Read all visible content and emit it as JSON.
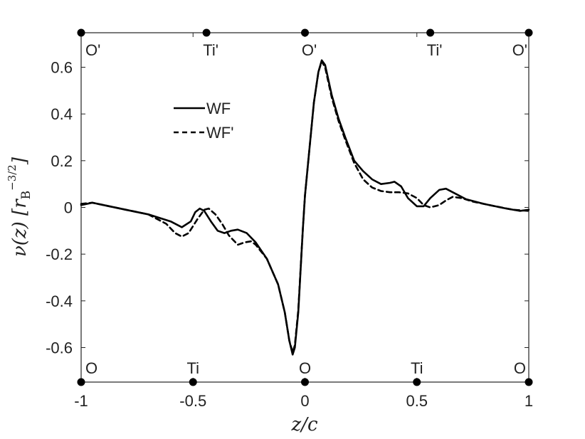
{
  "chart_data": {
    "type": "line",
    "xlabel": "z/c",
    "ylabel": "ν(z) [r_B^{-3/2}]",
    "xlim": [
      -1,
      1
    ],
    "ylim": [
      -0.75,
      0.75
    ],
    "x_ticks": [
      -1,
      -0.5,
      0,
      0.5,
      1
    ],
    "x_tick_labels": [
      "-1",
      "-0.5",
      "0",
      "0.5",
      "1"
    ],
    "y_ticks": [
      -0.6,
      -0.4,
      -0.2,
      0,
      0.2,
      0.4,
      0.6
    ],
    "y_tick_labels": [
      "-0.6",
      "-0.4",
      "-0.2",
      "0",
      "0.2",
      "0.4",
      "0.6"
    ],
    "grid": false,
    "legend_position": "upper-left",
    "series": [
      {
        "name": "WF",
        "style": "solid",
        "color": "#000000",
        "points": [
          [
            -1.0,
            0.01
          ],
          [
            -0.95,
            0.02
          ],
          [
            -0.9,
            0.01
          ],
          [
            -0.8,
            -0.01
          ],
          [
            -0.7,
            -0.03
          ],
          [
            -0.6,
            -0.06
          ],
          [
            -0.55,
            -0.085
          ],
          [
            -0.51,
            -0.06
          ],
          [
            -0.49,
            -0.02
          ],
          [
            -0.47,
            -0.005
          ],
          [
            -0.45,
            -0.015
          ],
          [
            -0.42,
            -0.06
          ],
          [
            -0.39,
            -0.1
          ],
          [
            -0.36,
            -0.11
          ],
          [
            -0.33,
            -0.1
          ],
          [
            -0.3,
            -0.095
          ],
          [
            -0.26,
            -0.11
          ],
          [
            -0.22,
            -0.15
          ],
          [
            -0.17,
            -0.22
          ],
          [
            -0.12,
            -0.33
          ],
          [
            -0.09,
            -0.45
          ],
          [
            -0.07,
            -0.57
          ],
          [
            -0.055,
            -0.63
          ],
          [
            -0.045,
            -0.6
          ],
          [
            -0.03,
            -0.45
          ],
          [
            -0.01,
            -0.1
          ],
          [
            0.0,
            0.05
          ],
          [
            0.02,
            0.25
          ],
          [
            0.04,
            0.45
          ],
          [
            0.06,
            0.58
          ],
          [
            0.075,
            0.63
          ],
          [
            0.09,
            0.61
          ],
          [
            0.12,
            0.48
          ],
          [
            0.15,
            0.38
          ],
          [
            0.18,
            0.3
          ],
          [
            0.22,
            0.2
          ],
          [
            0.26,
            0.155
          ],
          [
            0.3,
            0.12
          ],
          [
            0.34,
            0.1
          ],
          [
            0.38,
            0.105
          ],
          [
            0.4,
            0.11
          ],
          [
            0.43,
            0.09
          ],
          [
            0.46,
            0.04
          ],
          [
            0.5,
            0.005
          ],
          [
            0.53,
            0.005
          ],
          [
            0.56,
            0.04
          ],
          [
            0.6,
            0.075
          ],
          [
            0.63,
            0.08
          ],
          [
            0.66,
            0.065
          ],
          [
            0.72,
            0.035
          ],
          [
            0.8,
            0.015
          ],
          [
            0.9,
            -0.005
          ],
          [
            0.96,
            -0.015
          ],
          [
            1.0,
            -0.01
          ]
        ]
      },
      {
        "name": "WF'",
        "style": "dashed",
        "color": "#000000",
        "points": [
          [
            -1.0,
            0.015
          ],
          [
            -0.95,
            0.02
          ],
          [
            -0.9,
            0.01
          ],
          [
            -0.8,
            -0.01
          ],
          [
            -0.7,
            -0.03
          ],
          [
            -0.62,
            -0.07
          ],
          [
            -0.58,
            -0.11
          ],
          [
            -0.55,
            -0.125
          ],
          [
            -0.52,
            -0.11
          ],
          [
            -0.48,
            -0.05
          ],
          [
            -0.45,
            -0.01
          ],
          [
            -0.43,
            -0.005
          ],
          [
            -0.4,
            -0.03
          ],
          [
            -0.37,
            -0.07
          ],
          [
            -0.34,
            -0.12
          ],
          [
            -0.3,
            -0.16
          ],
          [
            -0.27,
            -0.15
          ],
          [
            -0.24,
            -0.145
          ],
          [
            -0.22,
            -0.16
          ],
          [
            -0.17,
            -0.22
          ],
          [
            -0.12,
            -0.33
          ],
          [
            -0.09,
            -0.45
          ],
          [
            -0.07,
            -0.57
          ],
          [
            -0.055,
            -0.62
          ],
          [
            -0.045,
            -0.59
          ],
          [
            -0.03,
            -0.44
          ],
          [
            -0.01,
            -0.1
          ],
          [
            0.0,
            0.05
          ],
          [
            0.02,
            0.25
          ],
          [
            0.04,
            0.45
          ],
          [
            0.06,
            0.58
          ],
          [
            0.075,
            0.625
          ],
          [
            0.09,
            0.6
          ],
          [
            0.12,
            0.47
          ],
          [
            0.15,
            0.37
          ],
          [
            0.18,
            0.29
          ],
          [
            0.22,
            0.19
          ],
          [
            0.26,
            0.12
          ],
          [
            0.3,
            0.085
          ],
          [
            0.34,
            0.07
          ],
          [
            0.38,
            0.065
          ],
          [
            0.42,
            0.065
          ],
          [
            0.46,
            0.06
          ],
          [
            0.5,
            0.04
          ],
          [
            0.53,
            0.01
          ],
          [
            0.56,
            0.0
          ],
          [
            0.6,
            0.01
          ],
          [
            0.63,
            0.03
          ],
          [
            0.66,
            0.045
          ],
          [
            0.7,
            0.04
          ],
          [
            0.75,
            0.025
          ],
          [
            0.85,
            0.005
          ],
          [
            0.93,
            -0.01
          ],
          [
            1.0,
            -0.015
          ]
        ]
      }
    ],
    "atom_labels_top": [
      {
        "x": -1,
        "label": "O'"
      },
      {
        "x": -0.44,
        "label": "Ti'"
      },
      {
        "x": 0,
        "label": "O'"
      },
      {
        "x": 0.56,
        "label": "Ti'"
      },
      {
        "x": 1,
        "label": "O'"
      }
    ],
    "atom_labels_bottom": [
      {
        "x": -1,
        "label": "O"
      },
      {
        "x": -0.5,
        "label": "Ti"
      },
      {
        "x": 0,
        "label": "O"
      },
      {
        "x": 0.5,
        "label": "Ti"
      },
      {
        "x": 1,
        "label": "O"
      }
    ]
  }
}
